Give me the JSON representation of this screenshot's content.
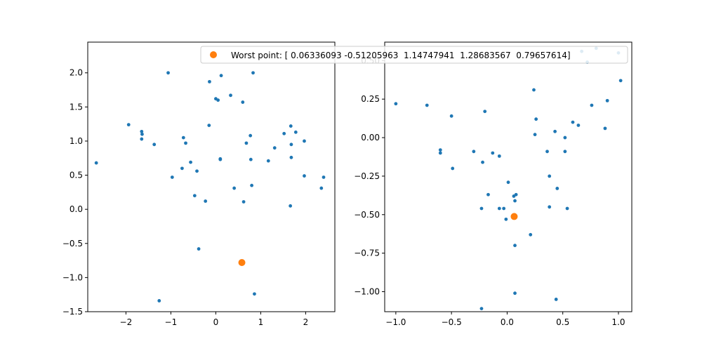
{
  "chart_data": [
    {
      "type": "scatter",
      "xlim": [
        -2.85,
        2.65
      ],
      "ylim": [
        -1.5,
        2.45
      ],
      "xticks": [
        -2,
        -1,
        0,
        1,
        2
      ],
      "yticks": [
        -1.5,
        -1.0,
        -0.5,
        0.0,
        0.5,
        1.0,
        1.5,
        2.0
      ],
      "xtick_labels": [
        "−2",
        "−1",
        "0",
        "1",
        "2"
      ],
      "ytick_labels": [
        "−1.5",
        "−1.0",
        "−0.5",
        "0.0",
        "0.5",
        "1.0",
        "1.5",
        "2.0"
      ],
      "series": [
        {
          "color": "#1f77b4",
          "marker": "small-dot",
          "points": [
            [
              -2.66,
              0.68
            ],
            [
              -1.94,
              1.24
            ],
            [
              -1.65,
              1.14
            ],
            [
              -1.64,
              1.1
            ],
            [
              -1.65,
              1.03
            ],
            [
              -1.37,
              0.95
            ],
            [
              -1.06,
              2.0
            ],
            [
              -0.97,
              0.47
            ],
            [
              -0.75,
              0.6
            ],
            [
              -0.72,
              1.05
            ],
            [
              -0.67,
              0.97
            ],
            [
              -0.56,
              0.69
            ],
            [
              -0.47,
              0.2
            ],
            [
              -0.42,
              0.56
            ],
            [
              -0.38,
              -0.58
            ],
            [
              -0.23,
              0.12
            ],
            [
              -0.15,
              1.23
            ],
            [
              -0.14,
              1.87
            ],
            [
              0.0,
              1.62
            ],
            [
              0.05,
              1.6
            ],
            [
              0.1,
              0.74
            ],
            [
              0.1,
              0.73
            ],
            [
              0.12,
              1.96
            ],
            [
              0.33,
              1.67
            ],
            [
              0.41,
              0.31
            ],
            [
              0.6,
              1.57
            ],
            [
              0.62,
              0.11
            ],
            [
              0.68,
              0.97
            ],
            [
              0.77,
              1.08
            ],
            [
              0.78,
              0.73
            ],
            [
              0.8,
              0.35
            ],
            [
              0.83,
              2.0
            ],
            [
              0.86,
              -1.24
            ],
            [
              1.17,
              0.71
            ],
            [
              1.31,
              0.9
            ],
            [
              1.52,
              1.11
            ],
            [
              1.67,
              1.22
            ],
            [
              1.68,
              0.95
            ],
            [
              1.68,
              0.76
            ],
            [
              1.66,
              0.05
            ],
            [
              1.78,
              1.13
            ],
            [
              1.97,
              1.0
            ],
            [
              1.97,
              0.49
            ],
            [
              2.35,
              0.31
            ],
            [
              2.4,
              0.47
            ],
            [
              -1.26,
              -1.34
            ]
          ]
        },
        {
          "color": "#ff7f0e",
          "marker": "dot",
          "points": [
            [
              0.58,
              -0.78
            ]
          ]
        }
      ]
    },
    {
      "type": "scatter",
      "xlim": [
        -1.1,
        1.12
      ],
      "ylim": [
        -1.13,
        0.62
      ],
      "xticks": [
        -1.0,
        -0.5,
        0.0,
        0.5,
        1.0
      ],
      "yticks": [
        -1.0,
        -0.75,
        -0.5,
        -0.25,
        0.0,
        0.25,
        0.5
      ],
      "xtick_labels": [
        "−1.0",
        "−0.5",
        "0.0",
        "0.5",
        "1.0"
      ],
      "ytick_labels": [
        "−1.00",
        "−0.75",
        "−0.50",
        "−0.25",
        "0.00",
        "0.25",
        "0.50"
      ],
      "series": [
        {
          "color": "#1f77b4",
          "marker": "small-dot",
          "points": [
            [
              -1.0,
              0.22
            ],
            [
              -0.72,
              0.21
            ],
            [
              -0.6,
              -0.08
            ],
            [
              -0.6,
              -0.1
            ],
            [
              -0.5,
              0.14
            ],
            [
              -0.49,
              -0.2
            ],
            [
              -0.3,
              -0.09
            ],
            [
              -0.22,
              -0.16
            ],
            [
              -0.2,
              0.17
            ],
            [
              -0.17,
              -0.37
            ],
            [
              -0.13,
              -0.1
            ],
            [
              -0.23,
              -0.46
            ],
            [
              -0.07,
              -0.12
            ],
            [
              -0.07,
              -0.46
            ],
            [
              -0.03,
              -0.46
            ],
            [
              -0.01,
              -0.53
            ],
            [
              0.01,
              -0.29
            ],
            [
              0.06,
              -0.38
            ],
            [
              0.08,
              -0.37
            ],
            [
              0.07,
              -0.41
            ],
            [
              0.07,
              -0.7
            ],
            [
              0.07,
              -1.01
            ],
            [
              -0.23,
              -1.11
            ],
            [
              0.21,
              -0.63
            ],
            [
              0.24,
              0.31
            ],
            [
              0.26,
              0.12
            ],
            [
              0.25,
              0.02
            ],
            [
              0.36,
              -0.09
            ],
            [
              0.38,
              -0.25
            ],
            [
              0.38,
              -0.45
            ],
            [
              0.43,
              0.04
            ],
            [
              0.45,
              -0.33
            ],
            [
              0.44,
              -1.05
            ],
            [
              0.52,
              0.0
            ],
            [
              0.52,
              -0.09
            ],
            [
              0.54,
              -0.46
            ],
            [
              0.59,
              0.1
            ],
            [
              0.64,
              0.08
            ],
            [
              0.67,
              0.56
            ],
            [
              0.72,
              0.49
            ],
            [
              0.76,
              0.21
            ],
            [
              0.8,
              0.58
            ],
            [
              0.88,
              0.06
            ],
            [
              0.9,
              0.24
            ],
            [
              1.0,
              0.55
            ],
            [
              1.02,
              0.37
            ]
          ]
        },
        {
          "color": "#ff7f0e",
          "marker": "dot",
          "points": [
            [
              0.06336093,
              -0.51205963
            ]
          ]
        }
      ]
    }
  ],
  "legend": {
    "label": "Worst point: [ 0.06336093 -0.51205963  1.14747941  1.28683567  0.79657614]",
    "marker_color": "#ff7f0e",
    "placement": "upper right, spanning both subplots"
  }
}
